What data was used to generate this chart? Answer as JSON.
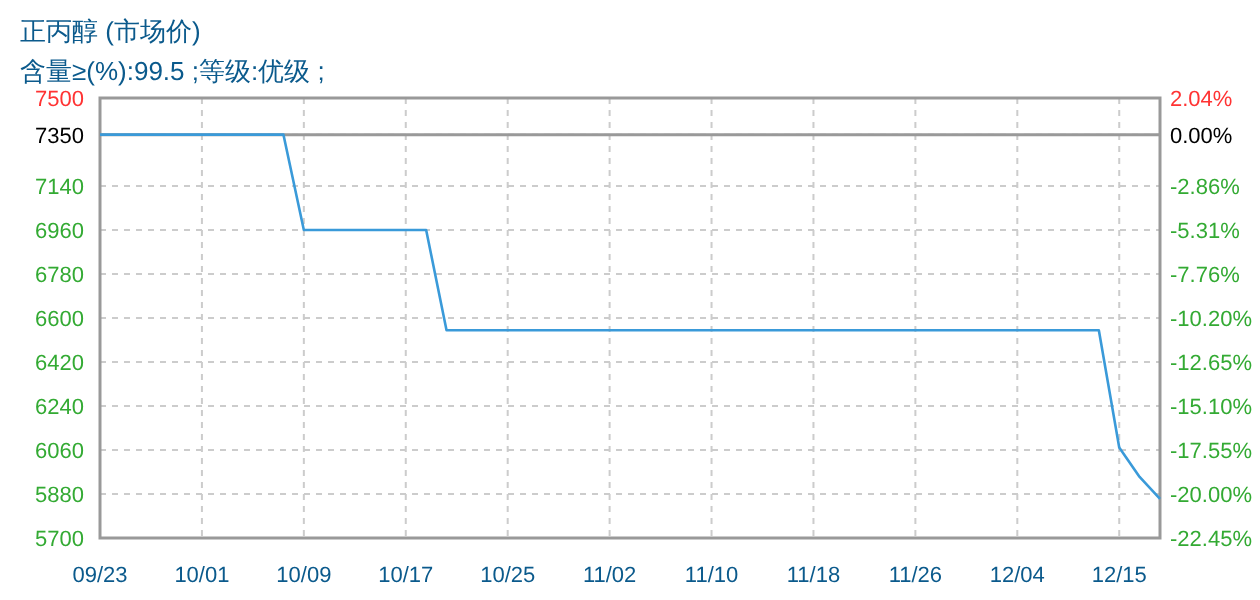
{
  "chart_data": {
    "type": "line",
    "title": "正丙醇 (市场价)",
    "subtitle": "含量≥(%):99.5 ;等级:优级 ;",
    "categories": [
      "09/23",
      null,
      null,
      null,
      null,
      "10/01",
      null,
      null,
      null,
      null,
      "10/09",
      null,
      null,
      null,
      null,
      "10/17",
      null,
      null,
      null,
      null,
      "10/25",
      null,
      null,
      null,
      null,
      "11/02",
      null,
      null,
      null,
      null,
      "11/10",
      null,
      null,
      null,
      null,
      "11/18",
      null,
      null,
      null,
      null,
      "11/26",
      null,
      null,
      null,
      null,
      "12/04",
      null,
      null,
      null,
      null,
      "12/15",
      null,
      null
    ],
    "series": [
      {
        "color": "#3a9ad9",
        "values": [
          7350,
          7350,
          7350,
          7350,
          7350,
          7350,
          7350,
          7350,
          7350,
          7350,
          6960,
          6960,
          6960,
          6960,
          6960,
          6960,
          6960,
          6550,
          6550,
          6550,
          6550,
          6550,
          6550,
          6550,
          6550,
          6550,
          6550,
          6550,
          6550,
          6550,
          6550,
          6550,
          6550,
          6550,
          6550,
          6550,
          6550,
          6550,
          6550,
          6550,
          6550,
          6550,
          6550,
          6550,
          6550,
          6550,
          6550,
          6550,
          6550,
          6550,
          6070,
          5950,
          5860
        ]
      }
    ],
    "ylim": [
      5700,
      7500
    ],
    "yticks": [
      5700,
      5880,
      6060,
      6240,
      6420,
      6600,
      6780,
      6960,
      7140,
      7350,
      7500
    ],
    "y2lim": [
      -22.45,
      2.04
    ],
    "y2ticks": [
      {
        "value": -22.45,
        "label": "-22.45%"
      },
      {
        "value": -20.0,
        "label": "-20.00%"
      },
      {
        "value": -17.55,
        "label": "-17.55%"
      },
      {
        "value": -15.1,
        "label": "-15.10%"
      },
      {
        "value": -12.65,
        "label": "-12.65%"
      },
      {
        "value": -10.2,
        "label": "-10.20%"
      },
      {
        "value": -7.76,
        "label": "-7.76%"
      },
      {
        "value": -5.31,
        "label": "-5.31%"
      },
      {
        "value": -2.86,
        "label": "-2.86%"
      },
      {
        "value": 0,
        "label": "0.00%"
      },
      {
        "value": 2.04,
        "label": "2.04%"
      }
    ],
    "ref_lines": [
      {
        "axis": "y",
        "value": 7350,
        "color": "#999999"
      }
    ],
    "grid": true,
    "marker": "none",
    "line_style": "solid"
  }
}
